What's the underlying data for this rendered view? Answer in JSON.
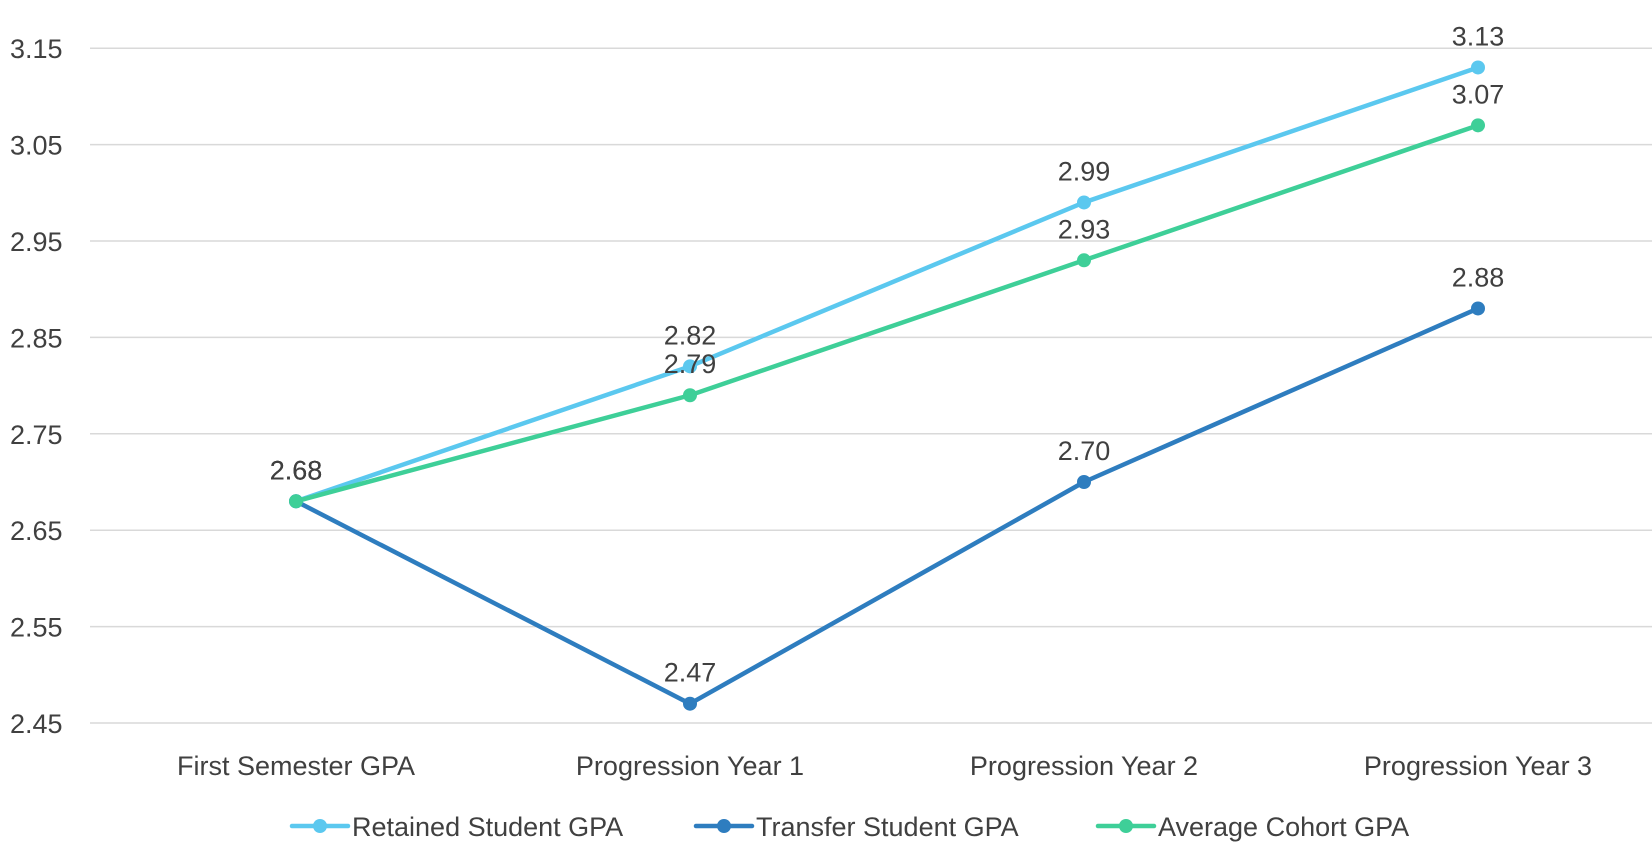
{
  "chart_data": {
    "type": "line",
    "title": "",
    "xlabel": "",
    "ylabel": "",
    "categories": [
      "First Semester GPA",
      "Progression Year 1",
      "Progression Year 2",
      "Progression Year 3"
    ],
    "ylim": [
      2.45,
      3.2
    ],
    "yticks": [
      "2.45",
      "2.55",
      "2.65",
      "2.75",
      "2.85",
      "2.95",
      "3.05",
      "3.15"
    ],
    "grid": true,
    "legend_position": "bottom",
    "series": [
      {
        "name": "Retained Student GPA",
        "color": "#5bc8ef",
        "values": [
          2.68,
          2.82,
          2.99,
          3.13
        ],
        "labels": [
          "2.68",
          "2.82",
          "2.99",
          "3.13"
        ]
      },
      {
        "name": "Transfer Student GPA",
        "color": "#2e7dbf",
        "values": [
          2.68,
          2.47,
          2.7,
          2.88
        ],
        "labels": [
          "2.68",
          "2.47",
          "2.70",
          "2.88"
        ]
      },
      {
        "name": "Average Cohort GPA",
        "color": "#3ecf98",
        "values": [
          2.68,
          2.79,
          2.93,
          3.07
        ],
        "labels": [
          "2.68",
          "2.79",
          "2.93",
          "3.07"
        ]
      }
    ]
  }
}
